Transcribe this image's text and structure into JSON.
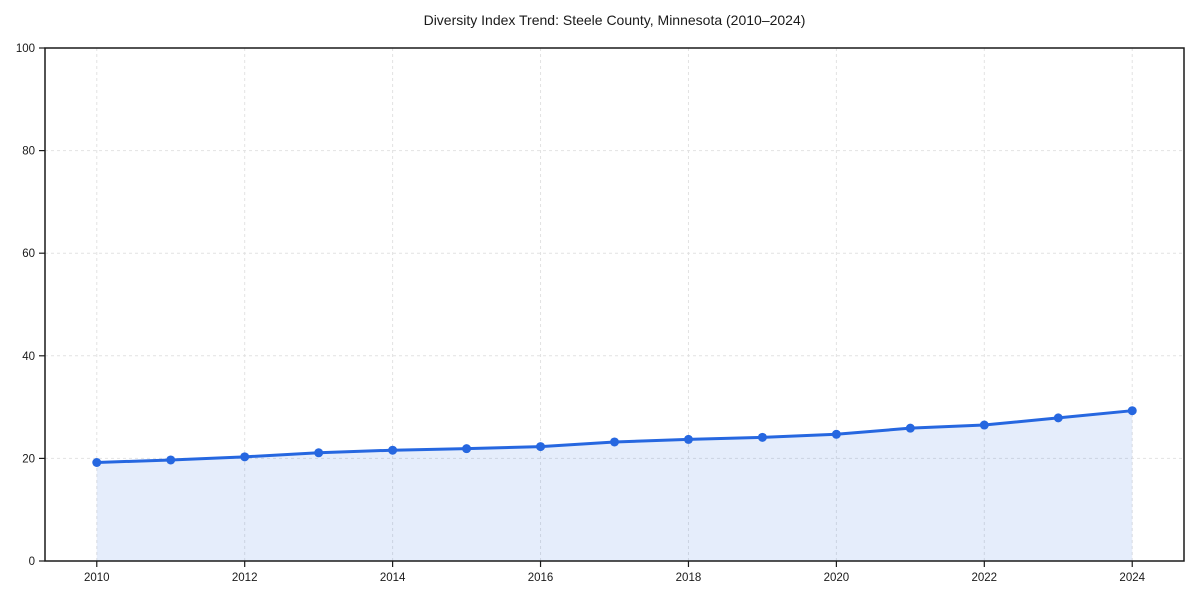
{
  "figure": {
    "background_color": "#ffffff"
  },
  "chart_data": {
    "type": "line",
    "title": "Diversity Index Trend: Steele County, Minnesota (2010–2024)",
    "x": [
      2010,
      2011,
      2012,
      2013,
      2014,
      2015,
      2016,
      2017,
      2018,
      2019,
      2020,
      2021,
      2022,
      2023,
      2024
    ],
    "series": [
      {
        "name": "Diversity Index",
        "values": [
          19.2,
          19.7,
          20.3,
          21.1,
          21.6,
          21.9,
          22.3,
          23.2,
          23.7,
          24.1,
          24.7,
          25.9,
          26.5,
          27.9,
          29.3
        ]
      }
    ],
    "xlabel": "",
    "ylabel": "",
    "xlim": [
      2009.3,
      2024.7
    ],
    "ylim": [
      0,
      100
    ],
    "xticks": [
      2010,
      2012,
      2014,
      2016,
      2018,
      2020,
      2022,
      2024
    ],
    "yticks": [
      0,
      20,
      40,
      60,
      80,
      100
    ],
    "grid": true,
    "grid_style": "dashed",
    "legend": "none",
    "line_color": "#2667e0",
    "marker": "circle",
    "marker_color": "#2667e0",
    "fill_under": true,
    "fill_color": "#2667e0",
    "fill_opacity": 0.12,
    "grid_color": "#e2e2e2",
    "axis_color": "#1a1a1a",
    "text_color": "#1a1a1a"
  }
}
